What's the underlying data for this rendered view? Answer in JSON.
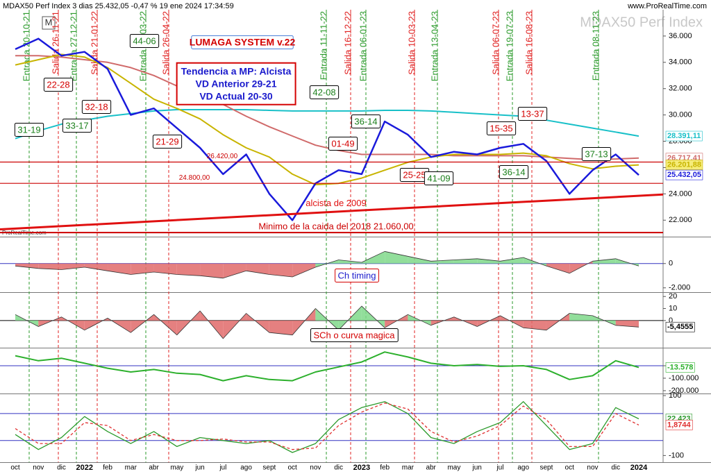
{
  "header": {
    "title": "MDAX50 Perf Index 3 dias 25.432,05 -0,47 % 19 ene 2024 17:34:59",
    "site": "www.ProRealTime.com",
    "watermark": "MDAX50 Perf Index",
    "logo": "ProRealTime.com",
    "marker": "M"
  },
  "chart_data": [
    {
      "type": "line",
      "ylim": [
        20800,
        38000
      ],
      "yticks": [
        {
          "value": 22000,
          "label": "22.000"
        },
        {
          "value": 24000,
          "label": "24.000"
        },
        {
          "value": 26000,
          "label": "26.000"
        },
        {
          "value": 28000,
          "label": "28.000"
        },
        {
          "value": 30000,
          "label": "30.000"
        },
        {
          "value": 32000,
          "label": "32.000"
        },
        {
          "value": 34000,
          "label": "34.000"
        },
        {
          "value": 36000,
          "label": "36.000"
        }
      ],
      "series": [
        {
          "color": "#18c0c8",
          "width": 2,
          "values": [
            28200,
            28800,
            29300,
            29600,
            29900,
            30100,
            30300,
            30400,
            30400,
            30400,
            30400,
            30350,
            30300,
            30300,
            30300,
            30300,
            30350,
            30350,
            30300,
            30200,
            30100,
            30000,
            29900,
            29600,
            29300,
            29000,
            28700,
            28391.11
          ],
          "value_labels": [
            null,
            null,
            null,
            null,
            null,
            null,
            null,
            null,
            null,
            null,
            null,
            null,
            null,
            null,
            null,
            null,
            null,
            null,
            null,
            null,
            null,
            null,
            null,
            null,
            null,
            null,
            null,
            "28.391,11"
          ]
        },
        {
          "color": "#d06a6a",
          "width": 2,
          "values": [
            34500,
            34500,
            34400,
            34200,
            34000,
            33600,
            33000,
            32200,
            31600,
            30800,
            29900,
            29100,
            28400,
            27700,
            27300,
            27000,
            27000,
            27000,
            27000,
            26900,
            26900,
            26900,
            26900,
            26800,
            26700,
            26600,
            26650,
            26717.41
          ],
          "value_labels": [
            null,
            null,
            null,
            null,
            null,
            null,
            null,
            null,
            null,
            null,
            null,
            null,
            null,
            null,
            null,
            null,
            null,
            null,
            null,
            null,
            null,
            null,
            null,
            null,
            null,
            null,
            null,
            "26.717,41"
          ]
        },
        {
          "color": "#c8b400",
          "width": 2,
          "values": [
            33800,
            34200,
            34600,
            34400,
            33600,
            32400,
            31200,
            30500,
            29700,
            28500,
            27500,
            26800,
            25500,
            24700,
            24800,
            25200,
            25800,
            26400,
            26800,
            27000,
            27000,
            27000,
            27100,
            26900,
            26300,
            25900,
            26100,
            26201.88
          ],
          "value_labels": [
            null,
            null,
            null,
            null,
            null,
            null,
            null,
            null,
            null,
            null,
            null,
            null,
            null,
            null,
            null,
            null,
            null,
            null,
            null,
            null,
            null,
            null,
            null,
            null,
            null,
            null,
            null,
            "26.201,88"
          ]
        },
        {
          "color": "#1a1adb",
          "width": 2.5,
          "values": [
            35000,
            35800,
            34500,
            34800,
            33500,
            30000,
            30500,
            29000,
            27500,
            25500,
            27000,
            24000,
            22000,
            24800,
            25800,
            25500,
            29500,
            28500,
            26800,
            27200,
            27000,
            27500,
            27800,
            26500,
            24000,
            25800,
            27000,
            25432.05
          ],
          "value_labels": [
            null,
            null,
            null,
            null,
            null,
            null,
            null,
            null,
            null,
            null,
            null,
            null,
            null,
            null,
            null,
            null,
            null,
            null,
            null,
            null,
            null,
            null,
            null,
            null,
            null,
            null,
            null,
            "25.432,05"
          ]
        }
      ],
      "levels": [
        {
          "value": 26420,
          "label": "26.420,00",
          "color": "#cc0000"
        },
        {
          "value": 24800,
          "label": "24.800,00",
          "color": "#cc0000"
        },
        {
          "value": 21060,
          "label": "Minimo de la caida del 2018  21.060,00",
          "color": "#cc0000"
        }
      ],
      "trendline": {
        "label": "alcista de 2009",
        "from": 21300,
        "to": 23950,
        "color": "#e01010"
      },
      "annotations": [
        {
          "text": "44-06",
          "color": "#1a7f1a"
        },
        {
          "text": "LUMAGA SYSTEM v.22",
          "color": "#d40000",
          "border": "#4a7fd8"
        },
        {
          "text": "22-28",
          "color": "#d40000"
        },
        {
          "text": "32-18",
          "color": "#d40000"
        },
        {
          "text": "31-19",
          "color": "#1a7f1a"
        },
        {
          "text": "33-17",
          "color": "#1a7f1a"
        },
        {
          "text": "21-29",
          "color": "#d40000"
        },
        {
          "text": "42-08",
          "color": "#1a7f1a"
        },
        {
          "text": "36-14",
          "color": "#1a7f1a"
        },
        {
          "text": "01-49",
          "color": "#d40000"
        },
        {
          "text": "25-25",
          "color": "#d40000"
        },
        {
          "text": "41-09",
          "color": "#1a7f1a"
        },
        {
          "text": "15-35",
          "color": "#d40000"
        },
        {
          "text": "13-37",
          "color": "#d40000"
        },
        {
          "text": "36-14",
          "color": "#1a7f1a"
        },
        {
          "text": "37-13",
          "color": "#1a7f1a"
        }
      ],
      "trend_box": {
        "lines": [
          "Tendencia a MP: Alcista",
          "VD Anterior 29-21",
          "VD Actual 20-30"
        ],
        "color": "#1a1acc",
        "border": "#d40000"
      },
      "signals": [
        {
          "text": "Entrada 20-10-21",
          "color": "#2a9a2a"
        },
        {
          "text": "Salida 26-11-21",
          "color": "#e02020"
        },
        {
          "text": "Entrada 27-12-21",
          "color": "#2a9a2a"
        },
        {
          "text": "Salida 21-01-22",
          "color": "#e02020"
        },
        {
          "text": "Entrada 25-03-22",
          "color": "#2a9a2a"
        },
        {
          "text": "Salida 26-04-22",
          "color": "#e02020"
        },
        {
          "text": "Entrada 11-11-22",
          "color": "#2a9a2a"
        },
        {
          "text": "Salida 16-12-22",
          "color": "#e02020"
        },
        {
          "text": "Entrada 06-01-23",
          "color": "#2a9a2a"
        },
        {
          "text": "Salida 10-03-23",
          "color": "#e02020"
        },
        {
          "text": "Entrada 13-04-23",
          "color": "#2a9a2a"
        },
        {
          "text": "Salida 06-07-23",
          "color": "#e02020"
        },
        {
          "text": "Entrada 19-07-23",
          "color": "#2a9a2a"
        },
        {
          "text": "Salida 16-08-23",
          "color": "#e02020"
        },
        {
          "text": "Entrada 08-11-23",
          "color": "#2a9a2a"
        }
      ]
    },
    {
      "type": "area",
      "title": "Ch timing",
      "title_color": "#1a1acc",
      "border": "#d40000",
      "ylim": [
        -2300,
        2100
      ],
      "yticks": [
        0,
        {
          "value": -2000,
          "label": "-2.000"
        }
      ],
      "hlines": [
        0
      ],
      "hline_color": "#3030c0",
      "values": [
        -200,
        -400,
        -500,
        -300,
        -600,
        -900,
        -700,
        -900,
        -1000,
        -1200,
        -600,
        -900,
        -1100,
        -300,
        300,
        100,
        1000,
        600,
        200,
        300,
        400,
        200,
        500,
        -200,
        -800,
        200,
        400,
        -200
      ]
    },
    {
      "type": "area",
      "title": "SCh o curva magica",
      "title_color": "#d40000",
      "border": "#000000",
      "ylim": [
        -22,
        23
      ],
      "yticks": [
        20,
        10,
        0
      ],
      "hlines": [
        0
      ],
      "hline_color": "#000000",
      "values": [
        5,
        -5,
        3,
        -8,
        2,
        -10,
        5,
        -12,
        8,
        -15,
        6,
        -10,
        -12,
        10,
        -8,
        12,
        -6,
        5,
        -4,
        3,
        -5,
        4,
        -6,
        -8,
        6,
        4,
        -4,
        -5.4555
      ],
      "value_labels": [
        null,
        null,
        null,
        null,
        null,
        null,
        null,
        null,
        null,
        null,
        null,
        null,
        null,
        null,
        null,
        null,
        null,
        null,
        null,
        null,
        null,
        null,
        null,
        null,
        null,
        null,
        null,
        "-5,4555"
      ]
    },
    {
      "type": "line",
      "ylim": [
        -217000,
        139000
      ],
      "yticks": [
        0,
        {
          "value": -100000,
          "label": "-100.000"
        },
        {
          "value": -200000,
          "label": "-200.000"
        }
      ],
      "hlines": [
        0
      ],
      "hline_color": "#3030c0",
      "series": [
        {
          "color": "#2cb02c",
          "width": 2,
          "values": [
            80000,
            40000,
            60000,
            20000,
            -20000,
            -50000,
            -30000,
            -60000,
            -70000,
            -120000,
            -80000,
            -110000,
            -120000,
            -50000,
            -10000,
            30000,
            110000,
            70000,
            20000,
            0,
            10000,
            -5000,
            0,
            -30000,
            -110000,
            -80000,
            40000,
            -13578
          ],
          "value_labels": [
            null,
            null,
            null,
            null,
            null,
            null,
            null,
            null,
            null,
            null,
            null,
            null,
            null,
            null,
            null,
            null,
            null,
            null,
            null,
            null,
            null,
            null,
            null,
            null,
            null,
            null,
            null,
            "-13.578"
          ]
        }
      ]
    },
    {
      "type": "line",
      "ylim": [
        -120,
        107
      ],
      "yticks": [
        100,
        -100
      ],
      "hlines": [
        40,
        -50
      ],
      "hline_color": "#3030c0",
      "series": [
        {
          "color": "#2a9a2a",
          "width": 1.3,
          "values": [
            -30,
            -80,
            -40,
            30,
            -20,
            -60,
            -20,
            -70,
            -40,
            -50,
            -60,
            -50,
            -90,
            -60,
            20,
            60,
            80,
            40,
            -40,
            -60,
            -20,
            10,
            80,
            0,
            -80,
            -60,
            60,
            22.423
          ],
          "value_labels": [
            null,
            null,
            null,
            null,
            null,
            null,
            null,
            null,
            null,
            null,
            null,
            null,
            null,
            null,
            null,
            null,
            null,
            null,
            null,
            null,
            null,
            null,
            null,
            null,
            null,
            null,
            null,
            "22,423"
          ]
        },
        {
          "color": "#e03030",
          "width": 1.3,
          "dashed": true,
          "values": [
            -10,
            -60,
            -60,
            10,
            0,
            -50,
            -30,
            -50,
            -50,
            -45,
            -55,
            -55,
            -80,
            -75,
            0,
            45,
            75,
            55,
            -20,
            -55,
            -35,
            0,
            65,
            20,
            -70,
            -70,
            40,
            1.8744
          ],
          "value_labels": [
            null,
            null,
            null,
            null,
            null,
            null,
            null,
            null,
            null,
            null,
            null,
            null,
            null,
            null,
            null,
            null,
            null,
            null,
            null,
            null,
            null,
            null,
            null,
            null,
            null,
            null,
            null,
            "1,8744"
          ]
        }
      ],
      "categories": [
        "oct",
        "nov",
        "dic",
        "2022",
        "feb",
        "mar",
        "abr",
        "may",
        "jun",
        "jul",
        "ago",
        "sept",
        "oct",
        "nov",
        "dic",
        "2023",
        "feb",
        "mar",
        "abr",
        "may",
        "jun",
        "jul",
        "ago",
        "sept",
        "oct",
        "nov",
        "dic",
        "2024"
      ]
    }
  ]
}
